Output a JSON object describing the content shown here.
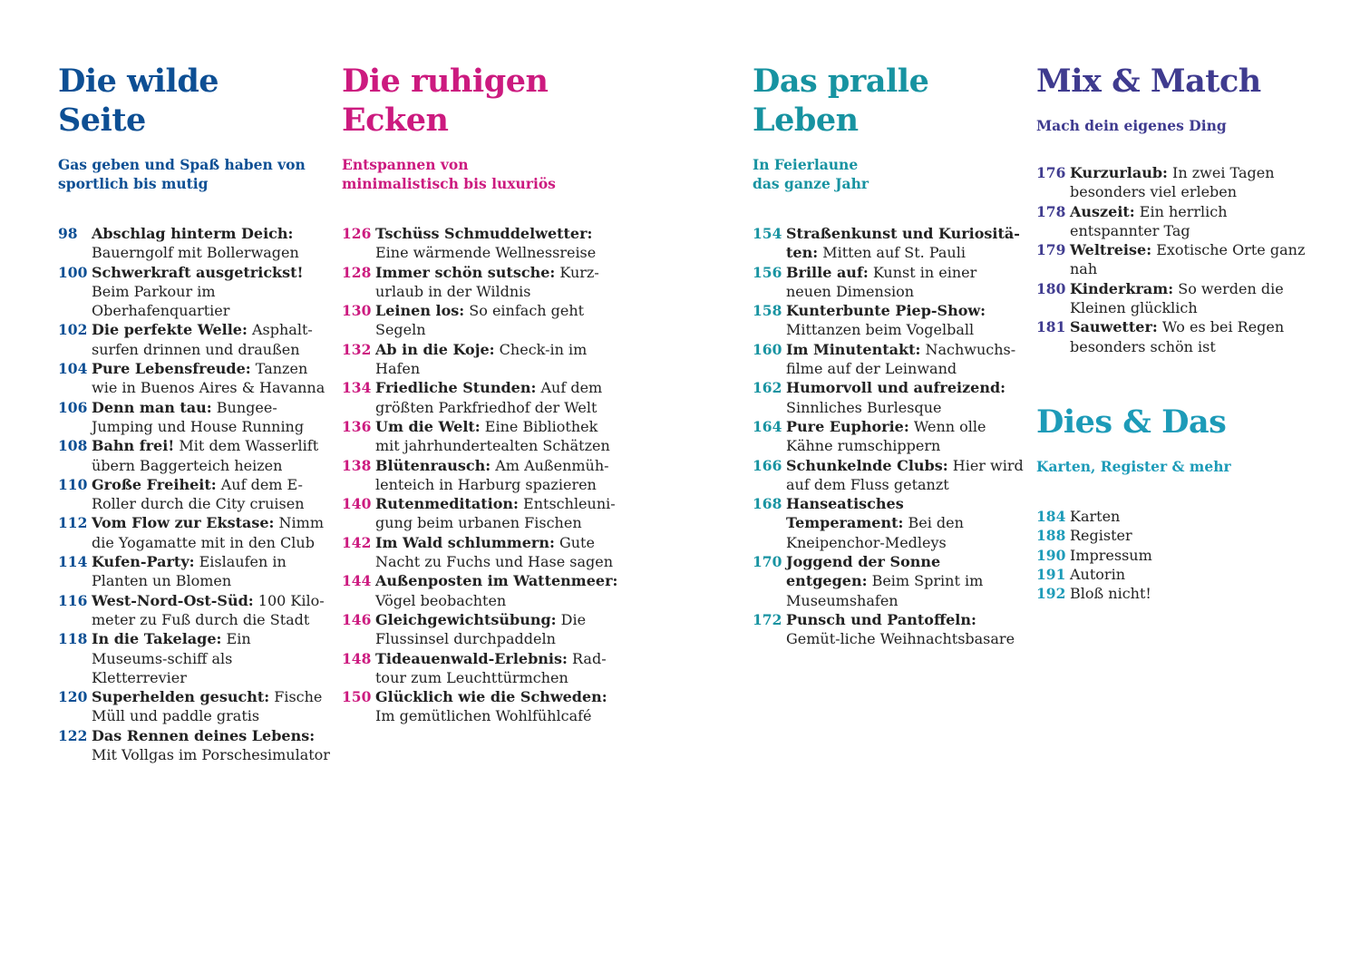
{
  "colors": {
    "wild": "#0d4f94",
    "calm": "#cc1a7f",
    "life": "#1793a1",
    "mix": "#3f3b8f",
    "dies": "#1d9bb8"
  },
  "wild": {
    "title": [
      "Die wilde",
      "Seite"
    ],
    "subtitle": [
      "Gas geben und Spaß haben von",
      "sportlich bis mutig"
    ],
    "entries": [
      {
        "num": "98",
        "head": "Abschlag hinterm Deich:",
        "rest": "Bauerngolf mit Bollerwagen"
      },
      {
        "num": "100",
        "head": "Schwerkraft ausgetrickst!",
        "rest": "Beim Parkour im Oberhafenquartier"
      },
      {
        "num": "102",
        "head": "Die perfekte Welle:",
        "rest": "Asphalt-surfen drinnen und draußen"
      },
      {
        "num": "104",
        "head": "Pure Lebensfreude:",
        "rest": "Tanzen wie in Buenos Aires & Havanna"
      },
      {
        "num": "106",
        "head": "Denn man tau:",
        "rest": "Bungee-Jumping und House Running"
      },
      {
        "num": "108",
        "head": "Bahn frei!",
        "rest": "Mit dem Wasserlift übern Baggerteich heizen"
      },
      {
        "num": "110",
        "head": "Große Freiheit:",
        "rest": "Auf dem E-Roller durch die City cruisen"
      },
      {
        "num": "112",
        "head": "Vom Flow zur Ekstase:",
        "rest": "Nimm die Yogamatte mit in den Club"
      },
      {
        "num": "114",
        "head": "Kufen-Party:",
        "rest": "Eislaufen in Planten un Blomen"
      },
      {
        "num": "116",
        "head": "West-Nord-Ost-Süd:",
        "rest": "100 Kilo-meter zu Fuß durch die Stadt"
      },
      {
        "num": "118",
        "head": "In die Takelage:",
        "rest": "Ein Museums-schiff als Kletterrevier"
      },
      {
        "num": "120",
        "head": "Superhelden gesucht:",
        "rest": "Fische Müll und paddle gratis"
      },
      {
        "num": "122",
        "head": "Das Rennen deines Lebens:",
        "rest": "Mit Vollgas im Porschesimulator"
      }
    ]
  },
  "calm": {
    "title": [
      "Die ruhigen",
      "Ecken"
    ],
    "subtitle": [
      "Entspannen von",
      "minimalistisch bis luxuriös"
    ],
    "entries": [
      {
        "num": "126",
        "head": "Tschüss Schmuddelwetter:",
        "rest": "Eine wärmende Wellnessreise"
      },
      {
        "num": "128",
        "head": "Immer schön sutsche:",
        "rest": "Kurz-urlaub in der Wildnis"
      },
      {
        "num": "130",
        "head": "Leinen los:",
        "rest": "So einfach geht Segeln"
      },
      {
        "num": "132",
        "head": "Ab in die Koje:",
        "rest": "Check-in im Hafen"
      },
      {
        "num": "134",
        "head": "Friedliche Stunden:",
        "rest": "Auf dem größten Parkfriedhof der Welt"
      },
      {
        "num": "136",
        "head": "Um die Welt:",
        "rest": "Eine Bibliothek mit jahrhundertealten Schätzen"
      },
      {
        "num": "138",
        "head": "Blütenrausch:",
        "rest": "Am Außenmüh-lenteich in Harburg spazieren"
      },
      {
        "num": "140",
        "head": "Rutenmeditation:",
        "rest": "Entschleuni-gung beim urbanen Fischen"
      },
      {
        "num": "142",
        "head": "Im Wald schlummern:",
        "rest": "Gute Nacht zu Fuchs und Hase sagen"
      },
      {
        "num": "144",
        "head": "Außenposten im Wattenmeer:",
        "rest": "Vögel beobachten"
      },
      {
        "num": "146",
        "head": "Gleichgewichtsübung:",
        "rest": "Die Flussinsel durchpaddeln"
      },
      {
        "num": "148",
        "head": "Tideauenwald-Erlebnis:",
        "rest": "Rad-tour zum Leuchttürmchen"
      },
      {
        "num": "150",
        "head": "Glücklich wie die Schweden:",
        "rest": "Im gemütlichen Wohlfühlcafé"
      }
    ]
  },
  "life": {
    "title": [
      "Das pralle",
      "Leben"
    ],
    "subtitle": [
      "In Feierlaune",
      "das ganze Jahr"
    ],
    "entries": [
      {
        "num": "154",
        "head": "Straßenkunst und Kuriositä-ten:",
        "rest": "Mitten auf St. Pauli"
      },
      {
        "num": "156",
        "head": "Brille auf:",
        "rest": "Kunst in einer neuen Dimension"
      },
      {
        "num": "158",
        "head": "Kunterbunte Piep-Show:",
        "rest": "Mittanzen beim Vogelball"
      },
      {
        "num": "160",
        "head": "Im Minutentakt:",
        "rest": "Nachwuchs-filme auf der Leinwand"
      },
      {
        "num": "162",
        "head": "Humorvoll und aufreizend:",
        "rest": "Sinnliches Burlesque"
      },
      {
        "num": "164",
        "head": "Pure Euphorie:",
        "rest": "Wenn olle Kähne rumschippern"
      },
      {
        "num": "166",
        "head": "Schunkelnde Clubs:",
        "rest": "Hier wird auf dem Fluss getanzt"
      },
      {
        "num": "168",
        "head": "Hanseatisches Temperament:",
        "rest": "Bei den Kneipenchor-Medleys"
      },
      {
        "num": "170",
        "head": "Joggend der Sonne entgegen:",
        "rest": "Beim Sprint im Museumshafen"
      },
      {
        "num": "172",
        "head": "Punsch und Pantoffeln:",
        "rest": "Gemüt-liche Weihnachtsbasare"
      }
    ]
  },
  "mix": {
    "title": [
      "Mix & Match"
    ],
    "subtitle": [
      "Mach dein eigenes Ding"
    ],
    "entries": [
      {
        "num": "176",
        "head": "Kurzurlaub:",
        "rest": "In zwei Tagen besonders viel erleben"
      },
      {
        "num": "178",
        "head": "Auszeit:",
        "rest": "Ein herrlich entspannter Tag"
      },
      {
        "num": "179",
        "head": "Weltreise:",
        "rest": "Exotische Orte ganz nah"
      },
      {
        "num": "180",
        "head": "Kinderkram:",
        "rest": "So werden die Kleinen glücklich"
      },
      {
        "num": "181",
        "head": "Sauwetter:",
        "rest": "Wo es bei Regen besonders schön ist"
      }
    ]
  },
  "dies": {
    "title": [
      "Dies & Das"
    ],
    "subtitle": [
      "Karten, Register & mehr"
    ],
    "entries": [
      {
        "num": "184",
        "label": "Karten"
      },
      {
        "num": "188",
        "label": "Register"
      },
      {
        "num": "190",
        "label": "Impressum"
      },
      {
        "num": "191",
        "label": "Autorin"
      },
      {
        "num": "192",
        "label": "Bloß nicht!"
      }
    ]
  }
}
